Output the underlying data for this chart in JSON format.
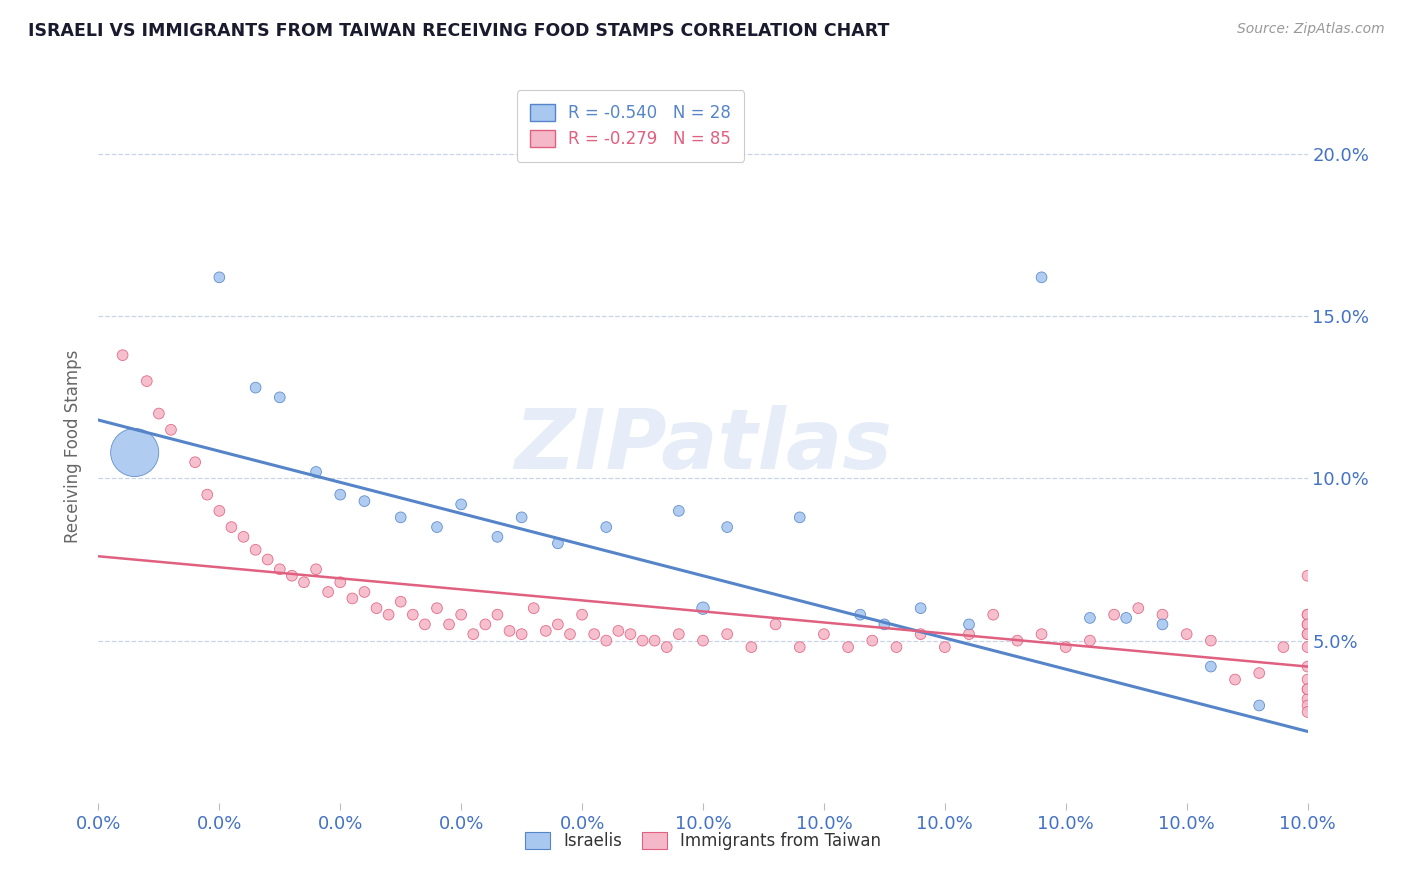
{
  "title": "ISRAELI VS IMMIGRANTS FROM TAIWAN RECEIVING FOOD STAMPS CORRELATION CHART",
  "source": "Source: ZipAtlas.com",
  "ylabel": "Receiving Food Stamps",
  "xlim": [
    0.0,
    0.1
  ],
  "ylim": [
    0.0,
    0.22
  ],
  "watermark": "ZIPatlas",
  "legend_R_blue": "R = -0.540",
  "legend_N_blue": "N = 28",
  "legend_R_pink": "R = -0.279",
  "legend_N_pink": "N = 85",
  "blue_color": "#A8C8F0",
  "pink_color": "#F5B8C8",
  "line_blue": "#5585C8",
  "line_pink": "#E06080",
  "israelis_x": [
    0.003,
    0.01,
    0.013,
    0.015,
    0.018,
    0.02,
    0.022,
    0.025,
    0.028,
    0.03,
    0.033,
    0.035,
    0.038,
    0.042,
    0.048,
    0.05,
    0.052,
    0.058,
    0.063,
    0.065,
    0.068,
    0.072,
    0.078,
    0.082,
    0.085,
    0.088,
    0.092,
    0.096
  ],
  "israelis_y": [
    0.108,
    0.162,
    0.128,
    0.125,
    0.102,
    0.095,
    0.093,
    0.088,
    0.085,
    0.092,
    0.082,
    0.088,
    0.08,
    0.085,
    0.09,
    0.06,
    0.085,
    0.088,
    0.058,
    0.055,
    0.06,
    0.055,
    0.162,
    0.057,
    0.057,
    0.055,
    0.042,
    0.03
  ],
  "israelis_size": [
    1200,
    60,
    60,
    60,
    60,
    60,
    60,
    60,
    60,
    60,
    60,
    60,
    60,
    60,
    60,
    80,
    60,
    60,
    60,
    60,
    60,
    60,
    60,
    60,
    60,
    60,
    60,
    60
  ],
  "taiwan_x": [
    0.002,
    0.004,
    0.005,
    0.006,
    0.008,
    0.009,
    0.01,
    0.011,
    0.012,
    0.013,
    0.014,
    0.015,
    0.016,
    0.017,
    0.018,
    0.019,
    0.02,
    0.021,
    0.022,
    0.023,
    0.024,
    0.025,
    0.026,
    0.027,
    0.028,
    0.029,
    0.03,
    0.031,
    0.032,
    0.033,
    0.034,
    0.035,
    0.036,
    0.037,
    0.038,
    0.039,
    0.04,
    0.041,
    0.042,
    0.043,
    0.044,
    0.045,
    0.046,
    0.047,
    0.048,
    0.05,
    0.052,
    0.054,
    0.056,
    0.058,
    0.06,
    0.062,
    0.064,
    0.066,
    0.068,
    0.07,
    0.072,
    0.074,
    0.076,
    0.078,
    0.08,
    0.082,
    0.084,
    0.086,
    0.088,
    0.09,
    0.092,
    0.094,
    0.096,
    0.098,
    0.1,
    0.1,
    0.1,
    0.1,
    0.1,
    0.1,
    0.1,
    0.1,
    0.1,
    0.1,
    0.1,
    0.1,
    0.1,
    0.1,
    0.1
  ],
  "taiwan_y": [
    0.138,
    0.13,
    0.12,
    0.115,
    0.105,
    0.095,
    0.09,
    0.085,
    0.082,
    0.078,
    0.075,
    0.072,
    0.07,
    0.068,
    0.072,
    0.065,
    0.068,
    0.063,
    0.065,
    0.06,
    0.058,
    0.062,
    0.058,
    0.055,
    0.06,
    0.055,
    0.058,
    0.052,
    0.055,
    0.058,
    0.053,
    0.052,
    0.06,
    0.053,
    0.055,
    0.052,
    0.058,
    0.052,
    0.05,
    0.053,
    0.052,
    0.05,
    0.05,
    0.048,
    0.052,
    0.05,
    0.052,
    0.048,
    0.055,
    0.048,
    0.052,
    0.048,
    0.05,
    0.048,
    0.052,
    0.048,
    0.052,
    0.058,
    0.05,
    0.052,
    0.048,
    0.05,
    0.058,
    0.06,
    0.058,
    0.052,
    0.05,
    0.038,
    0.04,
    0.048,
    0.07,
    0.058,
    0.055,
    0.052,
    0.058,
    0.055,
    0.052,
    0.048,
    0.042,
    0.038,
    0.035,
    0.032,
    0.03,
    0.035,
    0.028
  ],
  "taiwan_size": [
    60,
    60,
    60,
    60,
    60,
    60,
    60,
    60,
    60,
    60,
    60,
    60,
    60,
    60,
    60,
    60,
    60,
    60,
    60,
    60,
    60,
    60,
    60,
    60,
    60,
    60,
    60,
    60,
    60,
    60,
    60,
    60,
    60,
    60,
    60,
    60,
    60,
    60,
    60,
    60,
    60,
    60,
    60,
    60,
    60,
    60,
    60,
    60,
    60,
    60,
    60,
    60,
    60,
    60,
    60,
    60,
    60,
    60,
    60,
    60,
    60,
    60,
    60,
    60,
    60,
    60,
    60,
    60,
    60,
    60,
    60,
    60,
    60,
    60,
    60,
    60,
    60,
    60,
    60,
    60,
    60,
    60,
    60,
    60,
    60
  ],
  "blue_trendline_x": [
    0.0,
    0.1
  ],
  "blue_trendline_y": [
    0.118,
    0.022
  ],
  "pink_trendline_x": [
    0.0,
    0.1
  ],
  "pink_trendline_y": [
    0.076,
    0.042
  ],
  "ytick_values": [
    0.05,
    0.1,
    0.15,
    0.2
  ],
  "ytick_labels": [
    "5.0%",
    "10.0%",
    "15.0%",
    "20.0%"
  ],
  "xtick_values": [
    0.0,
    0.01,
    0.02,
    0.03,
    0.04,
    0.05,
    0.06,
    0.07,
    0.08,
    0.09,
    0.1
  ],
  "xtick_labels_show": {
    "0.0": "0.0%",
    "0.1": "10.0%"
  }
}
